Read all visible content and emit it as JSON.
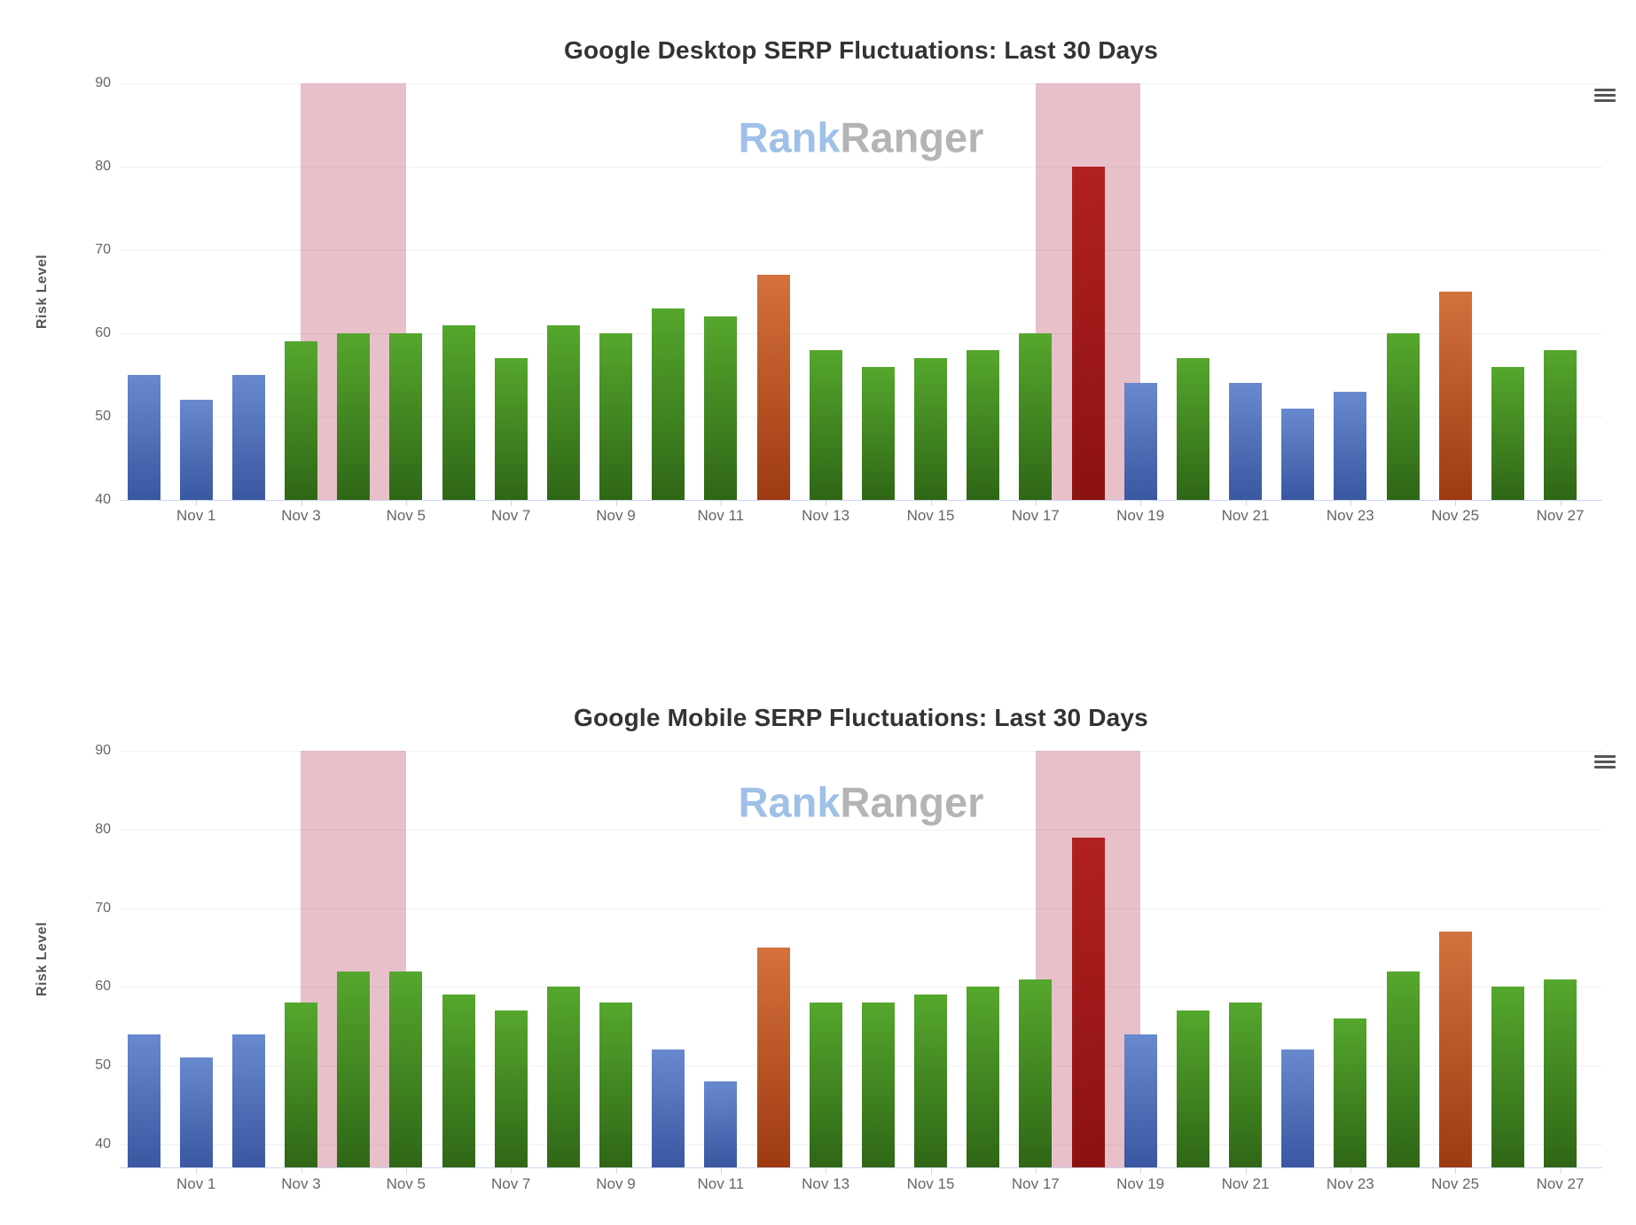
{
  "watermark": {
    "part1": "Rank",
    "part2": "Ranger"
  },
  "palette": {
    "blue_top": "#6889cf",
    "blue_bottom": "#3a57a1",
    "green_top": "#55a72d",
    "green_bottom": "#2f6616",
    "orange_top": "#d4713d",
    "orange_bottom": "#9e3a10",
    "red_top": "#b12121",
    "red_bottom": "#8c1111",
    "plot_band": "rgba(186,75,103,0.35)",
    "watermark_rank": "#9fc0e8",
    "watermark_ranger": "#b4b4b4",
    "grid_line": "#f0f0f0",
    "axis_line": "#ccd6eb",
    "title_text": "#333333",
    "tick_text": "#666666"
  },
  "charts": [
    {
      "id": "desktop",
      "title": "Google Desktop SERP Fluctuations: Last 30 Days",
      "y_axis_title": "Risk Level",
      "menu_icon": "hamburger-icon",
      "chart_data": {
        "type": "bar",
        "x": [
          "Oct 31",
          "Nov 1",
          "Nov 2",
          "Nov 3",
          "Nov 4",
          "Nov 5",
          "Nov 6",
          "Nov 7",
          "Nov 8",
          "Nov 9",
          "Nov 10",
          "Nov 11",
          "Nov 12",
          "Nov 13",
          "Nov 14",
          "Nov 15",
          "Nov 16",
          "Nov 17",
          "Nov 18",
          "Nov 19",
          "Nov 20",
          "Nov 21",
          "Nov 22",
          "Nov 23",
          "Nov 24",
          "Nov 25",
          "Nov 26",
          "Nov 27"
        ],
        "series": [
          {
            "name": "Risk Level",
            "values": [
              55,
              52,
              55,
              59,
              60,
              60,
              61,
              57,
              61,
              60,
              63,
              62,
              67,
              58,
              56,
              57,
              58,
              60,
              80,
              54,
              57,
              54,
              51,
              53,
              60,
              65,
              56,
              58
            ]
          }
        ],
        "colors": [
          "blue",
          "blue",
          "blue",
          "green",
          "green",
          "green",
          "green",
          "green",
          "green",
          "green",
          "green",
          "green",
          "orange",
          "green",
          "green",
          "green",
          "green",
          "green",
          "red",
          "blue",
          "green",
          "blue",
          "blue",
          "blue",
          "green",
          "orange",
          "green",
          "green"
        ],
        "x_tick_labels": [
          "Nov 1",
          "Nov 3",
          "Nov 5",
          "Nov 7",
          "Nov 9",
          "Nov 11",
          "Nov 13",
          "Nov 15",
          "Nov 17",
          "Nov 19",
          "Nov 21",
          "Nov 23",
          "Nov 25",
          "Nov 27"
        ],
        "y_tick_labels": [
          90,
          80,
          70,
          60,
          50,
          40
        ],
        "ylim": [
          40,
          90
        ],
        "ylabel": "Risk Level",
        "xlabel": "",
        "grid": true,
        "legend": false,
        "plot_bands": [
          {
            "from": "Nov 3",
            "to": "Nov 5"
          },
          {
            "from": "Nov 17",
            "to": "Nov 19"
          }
        ]
      }
    },
    {
      "id": "mobile",
      "title": "Google Mobile SERP Fluctuations: Last 30 Days",
      "y_axis_title": "Risk Level",
      "menu_icon": "hamburger-icon",
      "chart_data": {
        "type": "bar",
        "x": [
          "Oct 31",
          "Nov 1",
          "Nov 2",
          "Nov 3",
          "Nov 4",
          "Nov 5",
          "Nov 6",
          "Nov 7",
          "Nov 8",
          "Nov 9",
          "Nov 10",
          "Nov 11",
          "Nov 12",
          "Nov 13",
          "Nov 14",
          "Nov 15",
          "Nov 16",
          "Nov 17",
          "Nov 18",
          "Nov 19",
          "Nov 20",
          "Nov 21",
          "Nov 22",
          "Nov 23",
          "Nov 24",
          "Nov 25",
          "Nov 26",
          "Nov 27"
        ],
        "series": [
          {
            "name": "Risk Level",
            "values": [
              54,
              51,
              54,
              58,
              62,
              62,
              59,
              57,
              60,
              58,
              52,
              48,
              65,
              58,
              58,
              59,
              60,
              61,
              79,
              54,
              57,
              58,
              52,
              56,
              62,
              67,
              60,
              61
            ]
          }
        ],
        "colors": [
          "blue",
          "blue",
          "blue",
          "green",
          "green",
          "green",
          "green",
          "green",
          "green",
          "green",
          "blue",
          "blue",
          "orange",
          "green",
          "green",
          "green",
          "green",
          "green",
          "red",
          "blue",
          "green",
          "green",
          "blue",
          "green",
          "green",
          "orange",
          "green",
          "green"
        ],
        "x_tick_labels": [
          "Nov 1",
          "Nov 3",
          "Nov 5",
          "Nov 7",
          "Nov 9",
          "Nov 11",
          "Nov 13",
          "Nov 15",
          "Nov 17",
          "Nov 19",
          "Nov 21",
          "Nov 23",
          "Nov 25",
          "Nov 27"
        ],
        "y_tick_labels": [
          90,
          80,
          70,
          60,
          50,
          40
        ],
        "ylim": [
          40,
          90
        ],
        "ylabel": "Risk Level",
        "xlabel": "",
        "grid": true,
        "legend": false,
        "plot_bands": [
          {
            "from": "Nov 3",
            "to": "Nov 5"
          },
          {
            "from": "Nov 17",
            "to": "Nov 19"
          }
        ]
      }
    }
  ]
}
